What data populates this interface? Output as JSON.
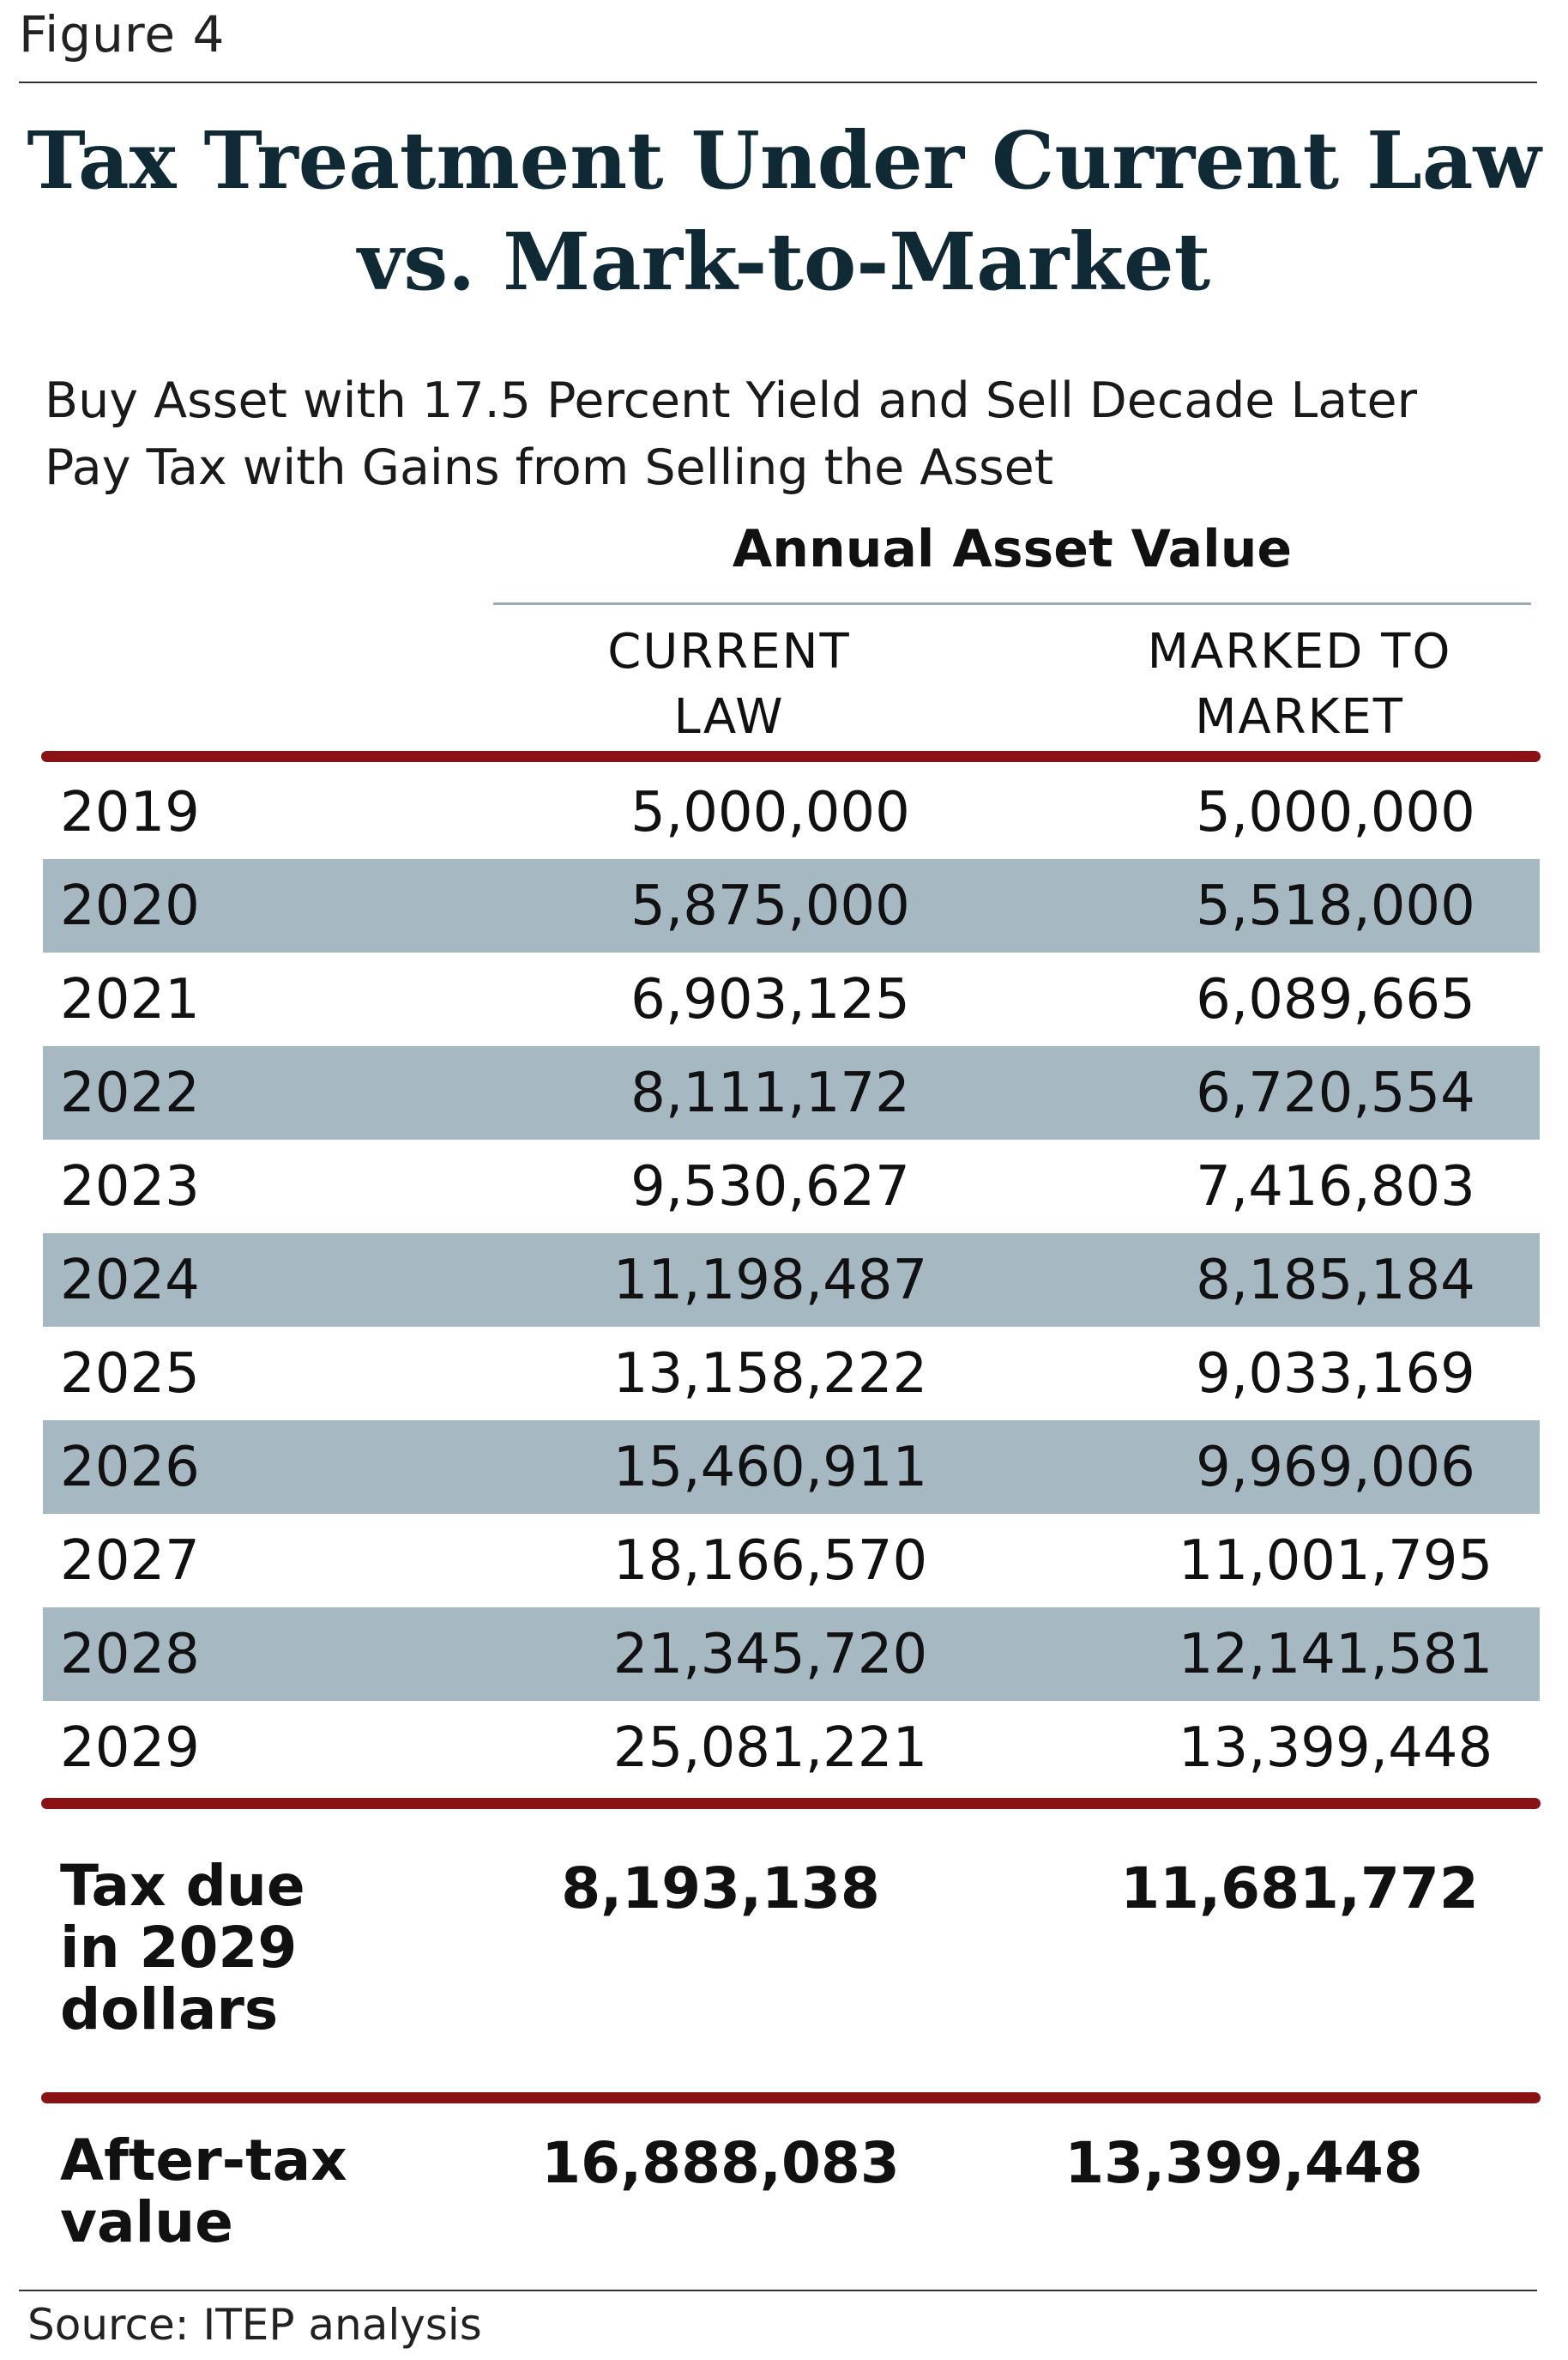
{
  "figure_label": "Figure 4",
  "title_line1": "Tax Treatment Under Current Law",
  "title_line2": "vs. Mark-to-Market",
  "subtitle_line1": "Buy Asset with 17.5 Percent Yield and Sell Decade Later",
  "subtitle_line2": "Pay Tax with Gains from Selling the Asset",
  "group_header": "Annual Asset Value",
  "col1_line1": "CURRENT",
  "col1_line2": "LAW",
  "col2_line1": "MARKED TO",
  "col2_line2": "MARKET",
  "rows": [
    {
      "year": "2019",
      "current": "5,000,000",
      "marked": "5,000,000"
    },
    {
      "year": "2020",
      "current": "5,875,000",
      "marked": "5,518,000"
    },
    {
      "year": "2021",
      "current": "6,903,125",
      "marked": "6,089,665"
    },
    {
      "year": "2022",
      "current": "8,111,172",
      "marked": "6,720,554"
    },
    {
      "year": "2023",
      "current": "9,530,627",
      "marked": "7,416,803"
    },
    {
      "year": "2024",
      "current": "11,198,487",
      "marked": "8,185,184"
    },
    {
      "year": "2025",
      "current": "13,158,222",
      "marked": "9,033,169"
    },
    {
      "year": "2026",
      "current": "15,460,911",
      "marked": "9,969,006"
    },
    {
      "year": "2027",
      "current": "18,166,570",
      "marked": "11,001,795"
    },
    {
      "year": "2028",
      "current": "21,345,720",
      "marked": "12,141,581"
    },
    {
      "year": "2029",
      "current": "25,081,221",
      "marked": "13,399,448"
    }
  ],
  "tax_due": {
    "label_line1": "Tax due",
    "label_line2": "in 2029",
    "label_line3": "dollars",
    "current": "8,193,138",
    "marked": "11,681,772"
  },
  "after_tax": {
    "label_line1": "After-tax",
    "label_line2": "value",
    "current": "16,888,083",
    "marked": "13,399,448"
  },
  "source": "Source: ITEP analysis",
  "colors": {
    "title": "#0f2a35",
    "accent_rule": "#8a1214",
    "row_shade": "#a6b9c3"
  }
}
